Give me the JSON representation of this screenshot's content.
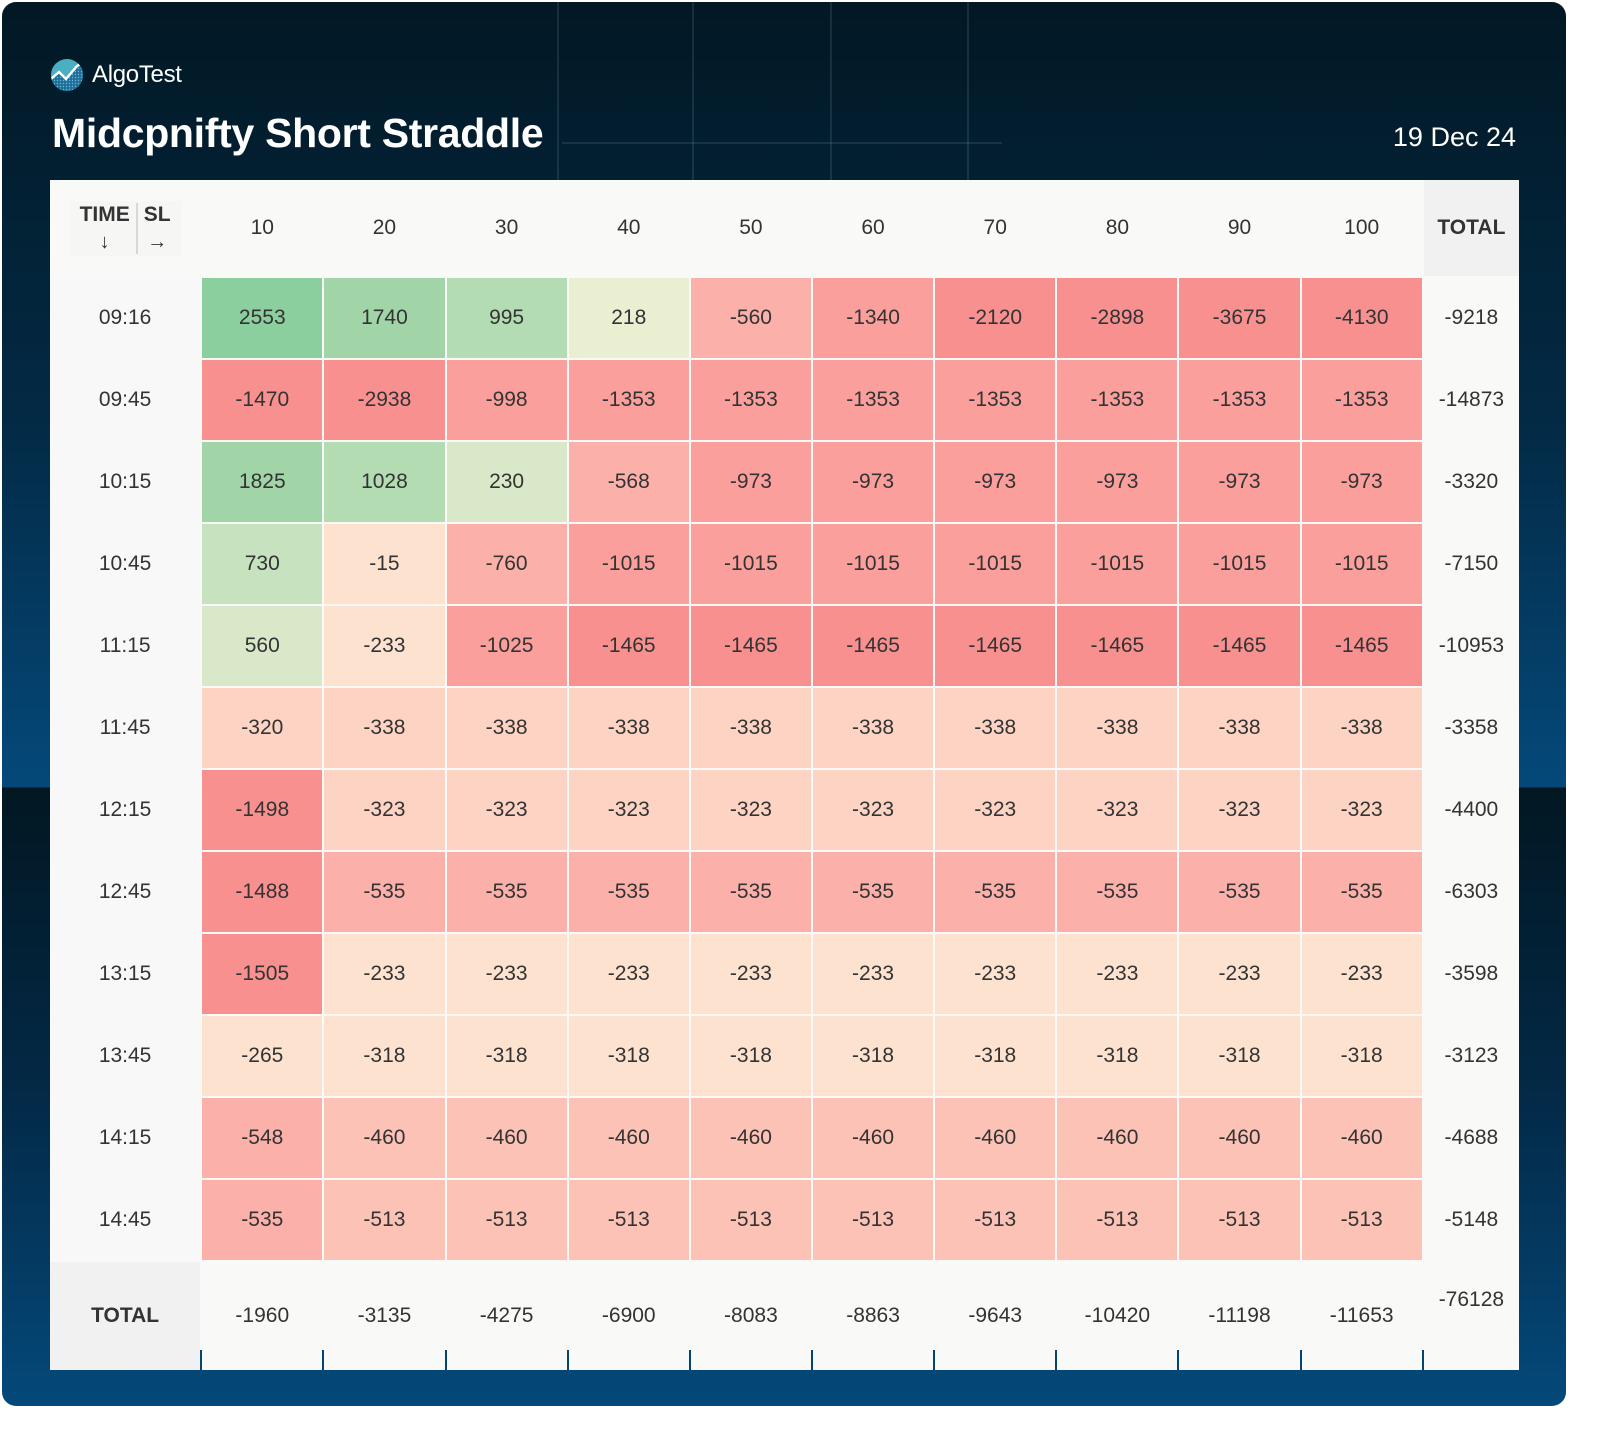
{
  "brand": {
    "name": "AlgoTest",
    "logo_icon": "algotest-logo-icon"
  },
  "header": {
    "title": "Midcpnifty Short Straddle",
    "date": "19 Dec 24"
  },
  "table": {
    "corner": {
      "row_label": "TIME",
      "row_arrow": "↓",
      "col_label": "SL",
      "col_arrow": "→"
    },
    "total_label": "TOTAL"
  },
  "palette": {
    "g1": "#8ccf9e",
    "g2": "#a1d5a8",
    "g3": "#b3dcb3",
    "g4": "#c6e2bf",
    "g5": "#d9e8c9",
    "g6": "#eaefd2",
    "p1": "#fde3cf",
    "p2": "#fdd3c3",
    "p3": "#fcc2b6",
    "p4": "#fbb0aa",
    "p5": "#fa9f9c",
    "p6": "#f99090"
  },
  "chart_data": {
    "type": "heatmap",
    "title": "Midcpnifty Short Straddle",
    "subtitle": "19 Dec 24",
    "xlabel": "SL",
    "ylabel": "TIME",
    "columns": [
      "10",
      "20",
      "30",
      "40",
      "50",
      "60",
      "70",
      "80",
      "90",
      "100"
    ],
    "rows": [
      {
        "time": "09:16",
        "values": [
          2553,
          1740,
          995,
          218,
          -560,
          -1340,
          -2120,
          -2898,
          -3675,
          -4130
        ],
        "colors": [
          "g1",
          "g2",
          "g3",
          "g6",
          "p4",
          "p5",
          "p6",
          "p6",
          "p6",
          "p6"
        ],
        "total": -9218
      },
      {
        "time": "09:45",
        "values": [
          -1470,
          -2938,
          -998,
          -1353,
          -1353,
          -1353,
          -1353,
          -1353,
          -1353,
          -1353
        ],
        "colors": [
          "p6",
          "p6",
          "p5",
          "p5",
          "p5",
          "p5",
          "p5",
          "p5",
          "p5",
          "p5"
        ],
        "total": -14873
      },
      {
        "time": "10:15",
        "values": [
          1825,
          1028,
          230,
          -568,
          -973,
          -973,
          -973,
          -973,
          -973,
          -973
        ],
        "colors": [
          "g2",
          "g3",
          "g5",
          "p4",
          "p5",
          "p5",
          "p5",
          "p5",
          "p5",
          "p5"
        ],
        "total": -3320
      },
      {
        "time": "10:45",
        "values": [
          730,
          -15,
          -760,
          -1015,
          -1015,
          -1015,
          -1015,
          -1015,
          -1015,
          -1015
        ],
        "colors": [
          "g4",
          "p1",
          "p4",
          "p5",
          "p5",
          "p5",
          "p5",
          "p5",
          "p5",
          "p5"
        ],
        "total": -7150
      },
      {
        "time": "11:15",
        "values": [
          560,
          -233,
          -1025,
          -1465,
          -1465,
          -1465,
          -1465,
          -1465,
          -1465,
          -1465
        ],
        "colors": [
          "g5",
          "p1",
          "p5",
          "p6",
          "p6",
          "p6",
          "p6",
          "p6",
          "p6",
          "p6"
        ],
        "total": -10953
      },
      {
        "time": "11:45",
        "values": [
          -320,
          -338,
          -338,
          -338,
          -338,
          -338,
          -338,
          -338,
          -338,
          -338
        ],
        "colors": [
          "p2",
          "p2",
          "p2",
          "p2",
          "p2",
          "p2",
          "p2",
          "p2",
          "p2",
          "p2"
        ],
        "total": -3358
      },
      {
        "time": "12:15",
        "values": [
          -1498,
          -323,
          -323,
          -323,
          -323,
          -323,
          -323,
          -323,
          -323,
          -323
        ],
        "colors": [
          "p6",
          "p2",
          "p2",
          "p2",
          "p2",
          "p2",
          "p2",
          "p2",
          "p2",
          "p2"
        ],
        "total": -4400
      },
      {
        "time": "12:45",
        "values": [
          -1488,
          -535,
          -535,
          -535,
          -535,
          -535,
          -535,
          -535,
          -535,
          -535
        ],
        "colors": [
          "p6",
          "p4",
          "p4",
          "p4",
          "p4",
          "p4",
          "p4",
          "p4",
          "p4",
          "p4"
        ],
        "total": -6303
      },
      {
        "time": "13:15",
        "values": [
          -1505,
          -233,
          -233,
          -233,
          -233,
          -233,
          -233,
          -233,
          -233,
          -233
        ],
        "colors": [
          "p6",
          "p1",
          "p1",
          "p1",
          "p1",
          "p1",
          "p1",
          "p1",
          "p1",
          "p1"
        ],
        "total": -3598
      },
      {
        "time": "13:45",
        "values": [
          -265,
          -318,
          -318,
          -318,
          -318,
          -318,
          -318,
          -318,
          -318,
          -318
        ],
        "colors": [
          "p1",
          "p1",
          "p1",
          "p1",
          "p1",
          "p1",
          "p1",
          "p1",
          "p1",
          "p1"
        ],
        "total": -3123
      },
      {
        "time": "14:15",
        "values": [
          -548,
          -460,
          -460,
          -460,
          -460,
          -460,
          -460,
          -460,
          -460,
          -460
        ],
        "colors": [
          "p4",
          "p3",
          "p3",
          "p3",
          "p3",
          "p3",
          "p3",
          "p3",
          "p3",
          "p3"
        ],
        "total": -4688
      },
      {
        "time": "14:45",
        "values": [
          -535,
          -513,
          -513,
          -513,
          -513,
          -513,
          -513,
          -513,
          -513,
          -513
        ],
        "colors": [
          "p4",
          "p3",
          "p3",
          "p3",
          "p3",
          "p3",
          "p3",
          "p3",
          "p3",
          "p3"
        ],
        "total": -5148
      }
    ],
    "column_totals": [
      -1960,
      -3135,
      -4275,
      -6900,
      -8083,
      -8863,
      -9643,
      -10420,
      -11198,
      -11653
    ],
    "grand_total": -76128
  }
}
